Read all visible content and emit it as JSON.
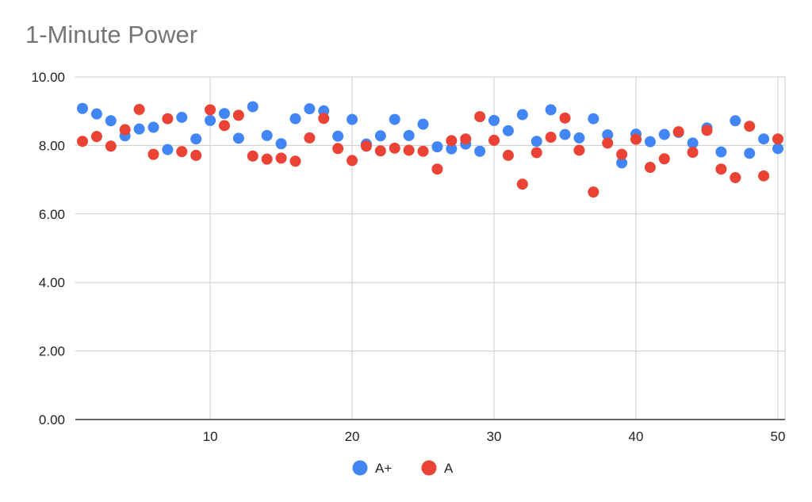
{
  "chart_data": {
    "type": "scatter",
    "title": "1-Minute Power",
    "xlabel": "",
    "ylabel": "",
    "xlim": [
      1,
      50
    ],
    "ylim": [
      0,
      10
    ],
    "x_ticks": [
      "10",
      "20",
      "30",
      "40",
      "50"
    ],
    "y_ticks": [
      "0.00",
      "2.00",
      "4.00",
      "6.00",
      "8.00",
      "10.00"
    ],
    "grid": true,
    "legend_position": "bottom",
    "series": [
      {
        "name": "A+",
        "color": "#4285f4",
        "x": [
          1,
          2,
          3,
          4,
          5,
          6,
          7,
          8,
          9,
          10,
          11,
          12,
          13,
          14,
          15,
          16,
          17,
          18,
          19,
          20,
          21,
          22,
          23,
          24,
          25,
          26,
          27,
          28,
          29,
          30,
          31,
          32,
          33,
          34,
          35,
          36,
          37,
          38,
          39,
          40,
          41,
          42,
          43,
          44,
          45,
          46,
          47,
          48,
          49,
          50
        ],
        "y": [
          9.08,
          8.92,
          8.72,
          8.28,
          8.48,
          8.53,
          7.88,
          8.82,
          8.19,
          8.73,
          8.93,
          8.21,
          9.13,
          8.29,
          8.05,
          8.78,
          9.07,
          9.01,
          8.27,
          8.76,
          8.04,
          8.28,
          8.76,
          8.29,
          8.62,
          7.96,
          7.9,
          8.04,
          7.83,
          8.73,
          8.43,
          8.9,
          8.12,
          9.04,
          8.32,
          8.22,
          8.78,
          8.31,
          7.49,
          8.33,
          8.11,
          8.32,
          8.38,
          8.07,
          8.51,
          7.81,
          8.72,
          7.77,
          8.19,
          7.91
        ]
      },
      {
        "name": "A",
        "color": "#ea4335",
        "x": [
          1,
          2,
          3,
          4,
          5,
          6,
          7,
          8,
          9,
          10,
          11,
          12,
          13,
          14,
          15,
          16,
          17,
          18,
          19,
          20,
          21,
          22,
          23,
          24,
          25,
          26,
          27,
          28,
          29,
          30,
          31,
          32,
          33,
          34,
          35,
          36,
          37,
          38,
          39,
          40,
          41,
          42,
          43,
          44,
          45,
          46,
          47,
          48,
          49,
          50
        ],
        "y": [
          8.12,
          8.26,
          7.98,
          8.46,
          9.05,
          7.74,
          8.78,
          7.82,
          7.71,
          9.04,
          8.58,
          8.88,
          7.69,
          7.6,
          7.63,
          7.54,
          8.22,
          8.79,
          7.91,
          7.56,
          7.98,
          7.84,
          7.92,
          7.86,
          7.83,
          7.31,
          8.14,
          8.19,
          8.84,
          8.15,
          7.71,
          6.87,
          7.79,
          8.24,
          8.8,
          7.86,
          6.64,
          8.07,
          7.74,
          8.18,
          7.36,
          7.61,
          8.4,
          7.8,
          8.44,
          7.31,
          7.06,
          8.56,
          7.11,
          8.19
        ]
      }
    ]
  }
}
